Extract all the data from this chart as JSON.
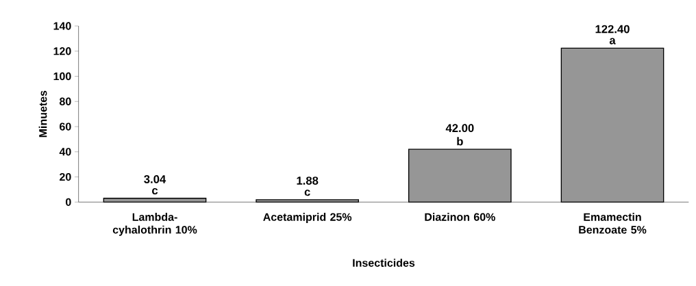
{
  "chart_data": {
    "type": "bar",
    "xlabel": "Insecticides",
    "ylabel": "Minuetes",
    "categories": [
      "Lambda-cyhalothrin 10%",
      "Acetamiprid 25%",
      "Diazinon 60%",
      "Emamectin Benzoate 5%"
    ],
    "values": [
      3.04,
      1.88,
      42.0,
      122.4
    ],
    "value_labels": [
      "3.04",
      "1.88",
      "42.00",
      "122.40"
    ],
    "color": "#969696",
    "ylim": [
      0,
      140
    ],
    "yticks": [
      0,
      20,
      40,
      60,
      80,
      100,
      120,
      140
    ],
    "grid": false,
    "annotations": [
      {
        "text": "c",
        "x": "Lambda-cyhalothrin 10%",
        "y": 3.04
      },
      {
        "text": "c",
        "x": "Acetamiprid 25%",
        "y": 1.88
      },
      {
        "text": "b",
        "x": "Diazinon 60%",
        "y": 42.0
      },
      {
        "text": "a",
        "x": "Emamectin Benzoate 5%",
        "y": 122.4
      }
    ]
  }
}
